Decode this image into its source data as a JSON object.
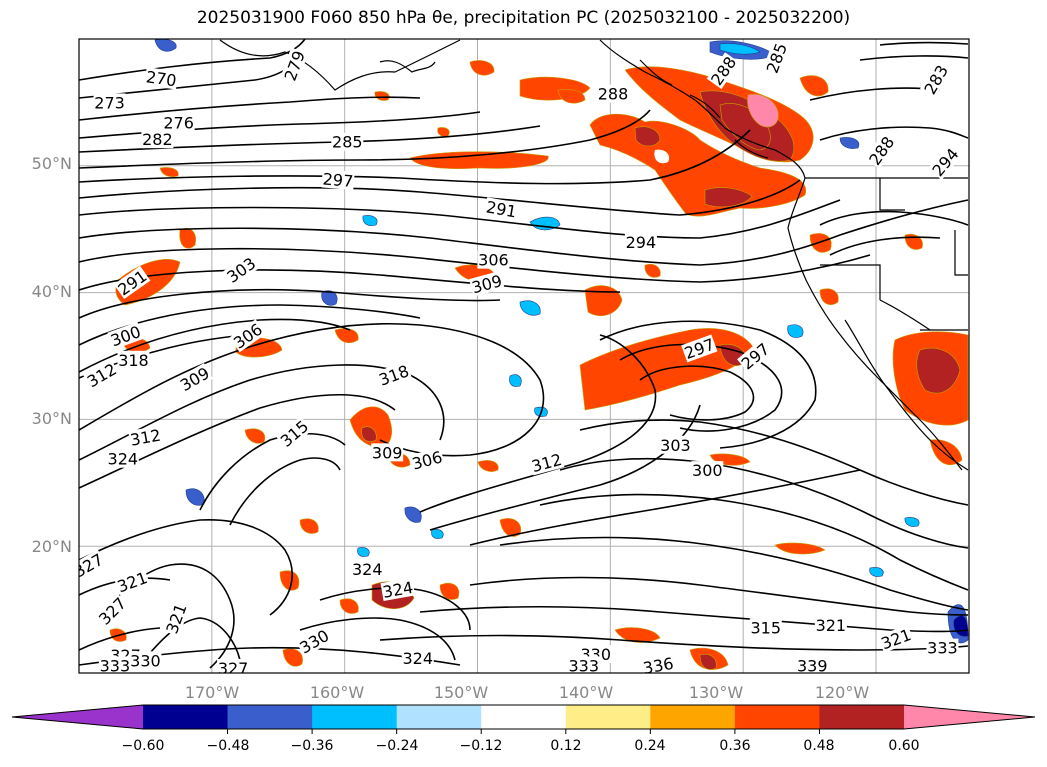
{
  "title": "2025031900 F060 850 hPa θe, precipitation PC (2025032100 - 2025032200)",
  "map": {
    "lat_labels": [
      "50°N",
      "40°N",
      "30°N",
      "20°N"
    ],
    "lon_labels": [
      "170°W",
      "160°W",
      "150°W",
      "140°W",
      "130°W",
      "120°W"
    ],
    "extent": {
      "lon": [
        -180,
        -113
      ],
      "lat": [
        10,
        60
      ]
    },
    "gridlines": true,
    "contour_labels": [
      {
        "text": "273",
        "lon": -177.7,
        "lat": 55.0,
        "rot": 0
      },
      {
        "text": "270",
        "lon": -173.8,
        "lat": 56.9,
        "rot": 8
      },
      {
        "text": "276",
        "lon": -172.5,
        "lat": 53.4,
        "rot": 0
      },
      {
        "text": "279",
        "lon": -163.8,
        "lat": 57.9,
        "rot": -70
      },
      {
        "text": "282",
        "lon": -174.1,
        "lat": 52.1,
        "rot": 0
      },
      {
        "text": "285",
        "lon": -159.8,
        "lat": 51.9,
        "rot": 0
      },
      {
        "text": "297",
        "lon": -160.5,
        "lat": 48.9,
        "rot": 5
      },
      {
        "text": "288",
        "lon": -139.8,
        "lat": 55.7,
        "rot": 0
      },
      {
        "text": "288",
        "lon": -131.5,
        "lat": 57.5,
        "rot": -55
      },
      {
        "text": "285",
        "lon": -127.5,
        "lat": 58.5,
        "rot": -70
      },
      {
        "text": "283",
        "lon": -115.5,
        "lat": 56.8,
        "rot": -60
      },
      {
        "text": "288",
        "lon": -119.6,
        "lat": 51.2,
        "rot": -55
      },
      {
        "text": "294",
        "lon": -114.8,
        "lat": 50.3,
        "rot": -50
      },
      {
        "text": "291",
        "lon": -148.2,
        "lat": 46.6,
        "rot": 10
      },
      {
        "text": "294",
        "lon": -137.7,
        "lat": 44.0,
        "rot": 0
      },
      {
        "text": "306",
        "lon": -148.8,
        "lat": 42.6,
        "rot": 0
      },
      {
        "text": "309",
        "lon": -149.3,
        "lat": 40.7,
        "rot": -15
      },
      {
        "text": "303",
        "lon": -167.8,
        "lat": 41.8,
        "rot": -35
      },
      {
        "text": "291",
        "lon": -176.0,
        "lat": 40.8,
        "rot": -35
      },
      {
        "text": "300",
        "lon": -176.5,
        "lat": 36.6,
        "rot": -20
      },
      {
        "text": "318",
        "lon": -175.9,
        "lat": 34.7,
        "rot": 0
      },
      {
        "text": "312",
        "lon": -178.3,
        "lat": 33.5,
        "rot": -30
      },
      {
        "text": "306",
        "lon": -167.3,
        "lat": 36.6,
        "rot": -35
      },
      {
        "text": "309",
        "lon": -171.3,
        "lat": 33.2,
        "rot": -30
      },
      {
        "text": "318",
        "lon": -156.3,
        "lat": 33.5,
        "rot": -20
      },
      {
        "text": "297",
        "lon": -133.3,
        "lat": 35.6,
        "rot": -20
      },
      {
        "text": "297",
        "lon": -129.1,
        "lat": 35.0,
        "rot": -40
      },
      {
        "text": "315",
        "lon": -163.8,
        "lat": 28.9,
        "rot": -40
      },
      {
        "text": "312",
        "lon": -175.0,
        "lat": 28.6,
        "rot": -10
      },
      {
        "text": "324",
        "lon": -176.7,
        "lat": 26.9,
        "rot": 0
      },
      {
        "text": "309",
        "lon": -156.8,
        "lat": 27.4,
        "rot": 0
      },
      {
        "text": "306",
        "lon": -153.8,
        "lat": 26.8,
        "rot": -15
      },
      {
        "text": "312",
        "lon": -144.8,
        "lat": 26.6,
        "rot": -15
      },
      {
        "text": "303",
        "lon": -135.1,
        "lat": 28.0,
        "rot": 0
      },
      {
        "text": "300",
        "lon": -132.7,
        "lat": 26.0,
        "rot": 0
      },
      {
        "text": "327",
        "lon": -179.3,
        "lat": 18.5,
        "rot": -30
      },
      {
        "text": "321",
        "lon": -176.0,
        "lat": 17.2,
        "rot": -20
      },
      {
        "text": "324",
        "lon": -158.3,
        "lat": 18.2,
        "rot": 0
      },
      {
        "text": "324",
        "lon": -156.0,
        "lat": 16.6,
        "rot": -10
      },
      {
        "text": "327",
        "lon": -177.5,
        "lat": 14.9,
        "rot": -45
      },
      {
        "text": "321",
        "lon": -172.7,
        "lat": 14.3,
        "rot": -70
      },
      {
        "text": "330",
        "lon": -162.3,
        "lat": 12.5,
        "rot": -30
      },
      {
        "text": "324",
        "lon": -154.5,
        "lat": 11.2,
        "rot": 0
      },
      {
        "text": "327",
        "lon": -176.5,
        "lat": 11.4,
        "rot": 0
      },
      {
        "text": "330",
        "lon": -175.0,
        "lat": 11.0,
        "rot": 0
      },
      {
        "text": "333",
        "lon": -177.3,
        "lat": 10.6,
        "rot": 0
      },
      {
        "text": "327",
        "lon": -168.4,
        "lat": 10.4,
        "rot": 0
      },
      {
        "text": "330",
        "lon": -141.1,
        "lat": 11.5,
        "rot": 0
      },
      {
        "text": "333",
        "lon": -142.0,
        "lat": 10.6,
        "rot": 0
      },
      {
        "text": "336",
        "lon": -136.4,
        "lat": 10.6,
        "rot": -10
      },
      {
        "text": "315",
        "lon": -128.3,
        "lat": 13.6,
        "rot": 0
      },
      {
        "text": "339",
        "lon": -124.8,
        "lat": 10.6,
        "rot": 0
      },
      {
        "text": "321",
        "lon": -123.4,
        "lat": 13.8,
        "rot": 0
      },
      {
        "text": "321",
        "lon": -118.5,
        "lat": 12.7,
        "rot": -20
      },
      {
        "text": "333",
        "lon": -115.0,
        "lat": 12.0,
        "rot": 0
      }
    ]
  },
  "colorbar": {
    "colors": [
      "#9933cc",
      "#000090",
      "#3a5fcd",
      "#00bfff",
      "#b0e2ff",
      "#ffffff",
      "#ffee88",
      "#ffa500",
      "#ff4500",
      "#b22222",
      "#ff88aa"
    ],
    "ticks": [
      "−0.60",
      "−0.48",
      "−0.36",
      "−0.24",
      "−0.12",
      "0.12",
      "0.24",
      "0.36",
      "0.48",
      "0.60"
    ]
  }
}
